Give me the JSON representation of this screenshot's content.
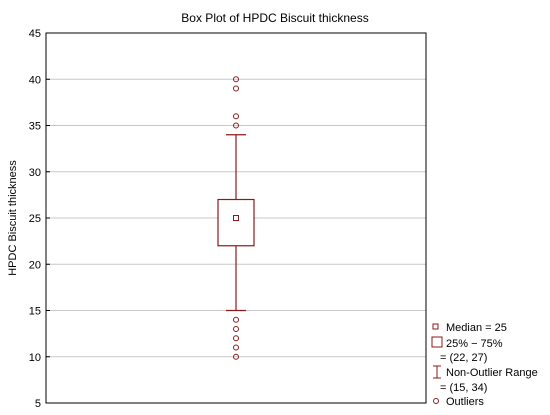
{
  "chart_data": {
    "type": "box",
    "title": "Box Plot of HPDC Biscuit thickness",
    "ylabel": "HPDC Biscuit thickness",
    "xlabel": "",
    "ylim": [
      5,
      45
    ],
    "yticks": [
      5,
      10,
      15,
      20,
      25,
      30,
      35,
      40,
      45
    ],
    "grid": "horizontal",
    "legend_position": "bottom-right",
    "series": [
      {
        "median": 25,
        "q1": 22,
        "q3": 27,
        "whisker_low": 15,
        "whisker_high": 34,
        "outliers": [
          10,
          11,
          12,
          13,
          14,
          35,
          36,
          39,
          40
        ]
      }
    ],
    "color": "#8b1a1a"
  },
  "legend": {
    "median": "Median = 25",
    "box_line1": "25% − 75%",
    "box_line2": "= (22, 27)",
    "range_line1": "Non-Outlier Range",
    "range_line2": "= (15, 34)",
    "outliers": "Outliers"
  }
}
